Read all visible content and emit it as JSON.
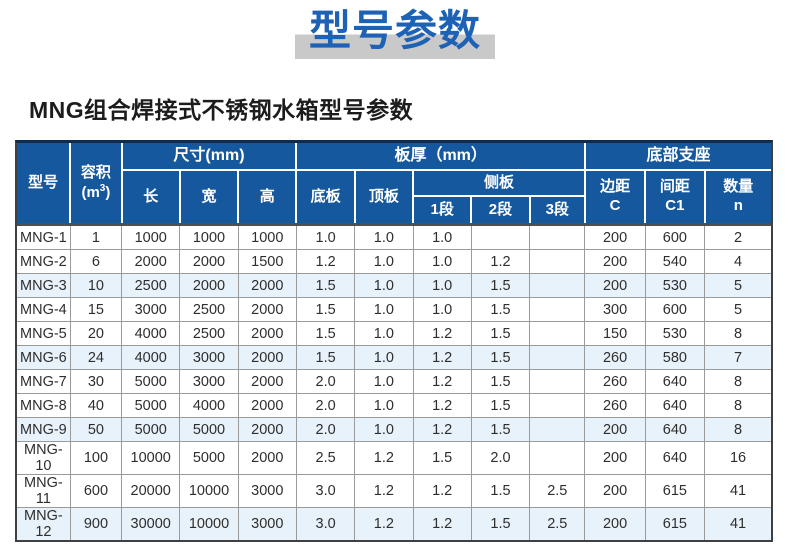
{
  "title": "型号参数",
  "subtitle": "MNG组合焊接式不锈钢水箱型号参数",
  "colors": {
    "header_blue": "#15589e",
    "title_blue": "#1d62b4",
    "band_gray": "#c9c9c9",
    "row_tint": "#e8f2fa"
  },
  "table": {
    "header": {
      "model": "型号",
      "volume_label": "容积",
      "volume_unit_open": "(m",
      "volume_unit_sup": "3",
      "volume_unit_close": ")",
      "size_group": "尺寸(mm)",
      "length": "长",
      "width": "宽",
      "height": "高",
      "thickness_group": "板厚（mm）",
      "bottom_plate": "底板",
      "top_plate": "顶板",
      "side_plate": "侧板",
      "seg1": "1段",
      "seg2": "2段",
      "seg3": "3段",
      "support_group": "底部支座",
      "edge_label": "边距",
      "edge_symbol": "C",
      "spacing_label": "间距",
      "spacing_symbol": "C1",
      "qty_label": "数量",
      "qty_symbol": "n"
    },
    "columns": [
      "model",
      "volume",
      "length",
      "width",
      "height",
      "bottom_plate",
      "top_plate",
      "seg1",
      "seg2",
      "seg3",
      "edge_c",
      "spacing_c1",
      "qty_n"
    ],
    "rows": [
      {
        "model": "MNG-1",
        "volume": "1",
        "length": "1000",
        "width": "1000",
        "height": "1000",
        "bottom_plate": "1.0",
        "top_plate": "1.0",
        "seg1": "1.0",
        "seg2": "",
        "seg3": "",
        "edge_c": "200",
        "spacing_c1": "600",
        "qty_n": "2",
        "highlight": false
      },
      {
        "model": "MNG-2",
        "volume": "6",
        "length": "2000",
        "width": "2000",
        "height": "1500",
        "bottom_plate": "1.2",
        "top_plate": "1.0",
        "seg1": "1.0",
        "seg2": "1.2",
        "seg3": "",
        "edge_c": "200",
        "spacing_c1": "540",
        "qty_n": "4",
        "highlight": false
      },
      {
        "model": "MNG-3",
        "volume": "10",
        "length": "2500",
        "width": "2000",
        "height": "2000",
        "bottom_plate": "1.5",
        "top_plate": "1.0",
        "seg1": "1.0",
        "seg2": "1.5",
        "seg3": "",
        "edge_c": "200",
        "spacing_c1": "530",
        "qty_n": "5",
        "highlight": true
      },
      {
        "model": "MNG-4",
        "volume": "15",
        "length": "3000",
        "width": "2500",
        "height": "2000",
        "bottom_plate": "1.5",
        "top_plate": "1.0",
        "seg1": "1.0",
        "seg2": "1.5",
        "seg3": "",
        "edge_c": "300",
        "spacing_c1": "600",
        "qty_n": "5",
        "highlight": false
      },
      {
        "model": "MNG-5",
        "volume": "20",
        "length": "4000",
        "width": "2500",
        "height": "2000",
        "bottom_plate": "1.5",
        "top_plate": "1.0",
        "seg1": "1.2",
        "seg2": "1.5",
        "seg3": "",
        "edge_c": "150",
        "spacing_c1": "530",
        "qty_n": "8",
        "highlight": false
      },
      {
        "model": "MNG-6",
        "volume": "24",
        "length": "4000",
        "width": "3000",
        "height": "2000",
        "bottom_plate": "1.5",
        "top_plate": "1.0",
        "seg1": "1.2",
        "seg2": "1.5",
        "seg3": "",
        "edge_c": "260",
        "spacing_c1": "580",
        "qty_n": "7",
        "highlight": true
      },
      {
        "model": "MNG-7",
        "volume": "30",
        "length": "5000",
        "width": "3000",
        "height": "2000",
        "bottom_plate": "2.0",
        "top_plate": "1.0",
        "seg1": "1.2",
        "seg2": "1.5",
        "seg3": "",
        "edge_c": "260",
        "spacing_c1": "640",
        "qty_n": "8",
        "highlight": false
      },
      {
        "model": "MNG-8",
        "volume": "40",
        "length": "5000",
        "width": "4000",
        "height": "2000",
        "bottom_plate": "2.0",
        "top_plate": "1.0",
        "seg1": "1.2",
        "seg2": "1.5",
        "seg3": "",
        "edge_c": "260",
        "spacing_c1": "640",
        "qty_n": "8",
        "highlight": false
      },
      {
        "model": "MNG-9",
        "volume": "50",
        "length": "5000",
        "width": "5000",
        "height": "2000",
        "bottom_plate": "2.0",
        "top_plate": "1.0",
        "seg1": "1.2",
        "seg2": "1.5",
        "seg3": "",
        "edge_c": "200",
        "spacing_c1": "640",
        "qty_n": "8",
        "highlight": true
      },
      {
        "model": "MNG-10",
        "volume": "100",
        "length": "10000",
        "width": "5000",
        "height": "2000",
        "bottom_plate": "2.5",
        "top_plate": "1.2",
        "seg1": "1.5",
        "seg2": "2.0",
        "seg3": "",
        "edge_c": "200",
        "spacing_c1": "640",
        "qty_n": "16",
        "highlight": false
      },
      {
        "model": "MNG-11",
        "volume": "600",
        "length": "20000",
        "width": "10000",
        "height": "3000",
        "bottom_plate": "3.0",
        "top_plate": "1.2",
        "seg1": "1.2",
        "seg2": "1.5",
        "seg3": "2.5",
        "edge_c": "200",
        "spacing_c1": "615",
        "qty_n": "41",
        "highlight": false
      },
      {
        "model": "MNG-12",
        "volume": "900",
        "length": "30000",
        "width": "10000",
        "height": "3000",
        "bottom_plate": "3.0",
        "top_plate": "1.2",
        "seg1": "1.2",
        "seg2": "1.5",
        "seg3": "2.5",
        "edge_c": "200",
        "spacing_c1": "615",
        "qty_n": "41",
        "highlight": true
      }
    ]
  }
}
